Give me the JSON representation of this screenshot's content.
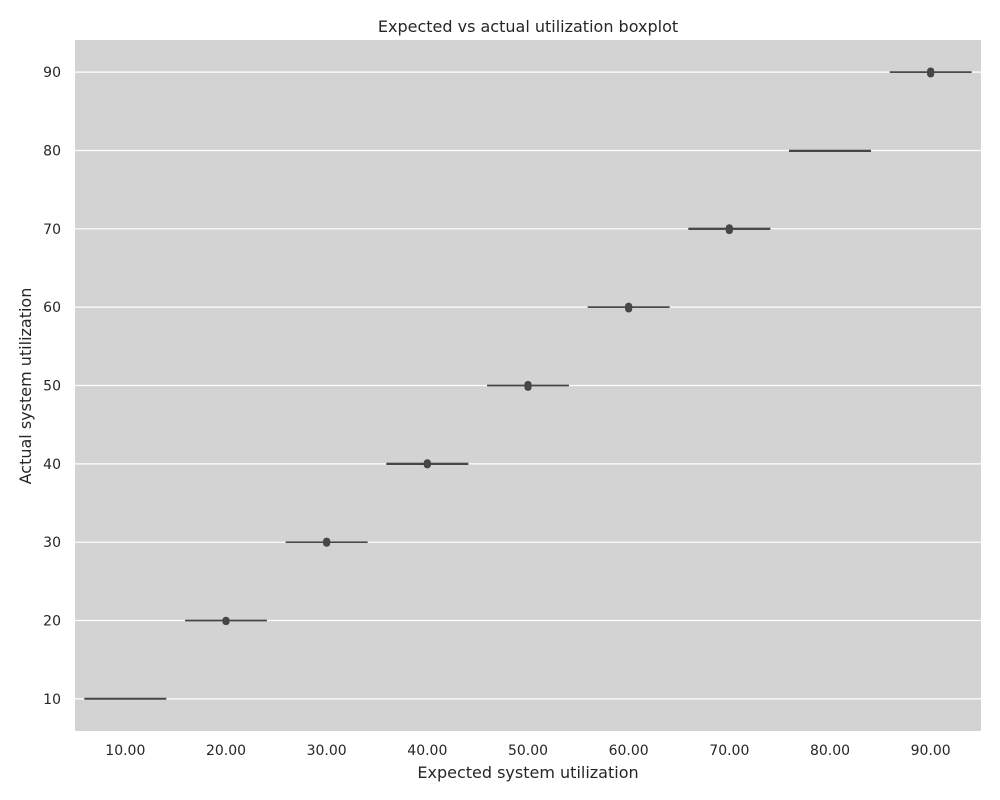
{
  "chart_data": {
    "type": "box",
    "title": "Expected vs actual utilization boxplot",
    "xlabel": "Expected system utilization",
    "ylabel": "Actual system utilization",
    "categories": [
      "10.00",
      "20.00",
      "30.00",
      "40.00",
      "50.00",
      "60.00",
      "70.00",
      "80.00",
      "90.00"
    ],
    "boxes": [
      {
        "category": "10.00",
        "q1": 10.0,
        "median": 10.0,
        "q3": 10.05,
        "whisker_low": 10.0,
        "whisker_high": 10.05,
        "outliers": []
      },
      {
        "category": "20.00",
        "q1": 20.0,
        "median": 20.0,
        "q3": 20.0,
        "whisker_low": 20.0,
        "whisker_high": 20.0,
        "outliers": [
          19.8,
          19.9,
          20.1
        ]
      },
      {
        "category": "30.00",
        "q1": 30.0,
        "median": 30.0,
        "q3": 30.0,
        "whisker_low": 30.0,
        "whisker_high": 30.0,
        "outliers": [
          29.8,
          29.9,
          30.1,
          30.2
        ]
      },
      {
        "category": "40.00",
        "q1": 39.95,
        "median": 40.0,
        "q3": 40.05,
        "whisker_low": 39.95,
        "whisker_high": 40.05,
        "outliers": [
          39.8,
          39.9,
          40.1,
          40.2
        ]
      },
      {
        "category": "50.00",
        "q1": 50.0,
        "median": 50.0,
        "q3": 50.0,
        "whisker_low": 50.0,
        "whisker_high": 50.0,
        "outliers": [
          49.7,
          49.8,
          49.9,
          50.1,
          50.2
        ]
      },
      {
        "category": "60.00",
        "q1": 60.0,
        "median": 60.0,
        "q3": 60.0,
        "whisker_low": 60.0,
        "whisker_high": 60.0,
        "outliers": [
          59.7,
          59.8,
          59.9,
          60.1,
          60.2
        ]
      },
      {
        "category": "70.00",
        "q1": 69.95,
        "median": 70.0,
        "q3": 70.05,
        "whisker_low": 69.95,
        "whisker_high": 70.05,
        "outliers": [
          69.7,
          69.8,
          69.9,
          70.1,
          70.2
        ]
      },
      {
        "category": "80.00",
        "q1": 79.9,
        "median": 79.95,
        "q3": 80.0,
        "whisker_low": 79.9,
        "whisker_high": 80.0,
        "outliers": []
      },
      {
        "category": "90.00",
        "q1": 90.0,
        "median": 90.0,
        "q3": 90.0,
        "whisker_low": 90.0,
        "whisker_high": 90.0,
        "outliers": [
          89.7,
          89.8,
          89.9,
          90.1,
          90.2
        ]
      }
    ],
    "y_ticks": [
      10,
      20,
      30,
      40,
      50,
      60,
      70,
      80,
      90
    ],
    "ylim": [
      5.9,
      94.1
    ],
    "grid": true,
    "colors": {
      "background": "#d3d3d3",
      "grid": "#ffffff",
      "box": "#464646"
    }
  }
}
